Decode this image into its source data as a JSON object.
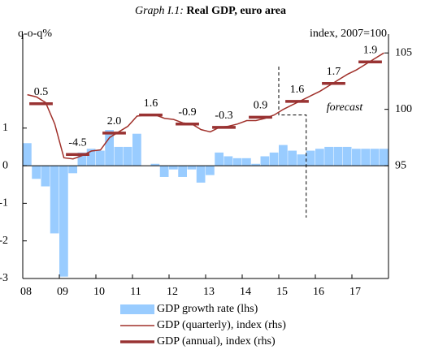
{
  "chart_data": {
    "type": "bar_line",
    "title_prefix": "Graph I.1:",
    "title": "Real GDP, euro area",
    "ylabel": "q-o-q%",
    "y2label": "index, 2007=100",
    "annotation": "forecast",
    "forecast_from": [
      2015,
      2015.75
    ],
    "x": [
      2008,
      2008.25,
      2008.5,
      2008.75,
      2009,
      2009.25,
      2009.5,
      2009.75,
      2010,
      2010.25,
      2010.5,
      2010.75,
      2011,
      2011.25,
      2011.5,
      2011.75,
      2012,
      2012.25,
      2012.5,
      2012.75,
      2013,
      2013.25,
      2013.5,
      2013.75,
      2014,
      2014.25,
      2014.5,
      2014.75,
      2015,
      2015.25,
      2015.5,
      2015.75,
      2016,
      2016.25,
      2016.5,
      2016.75,
      2017,
      2017.25,
      2017.5,
      2017.75
    ],
    "xlim": [
      2008,
      2018
    ],
    "xticks": [
      {
        "value": 2008,
        "label": "08"
      },
      {
        "value": 2009,
        "label": "09"
      },
      {
        "value": 2010,
        "label": "10"
      },
      {
        "value": 2011,
        "label": "11"
      },
      {
        "value": 2012,
        "label": "12"
      },
      {
        "value": 2013,
        "label": "13"
      },
      {
        "value": 2014,
        "label": "14"
      },
      {
        "value": 2015,
        "label": "15"
      },
      {
        "value": 2016,
        "label": "16"
      },
      {
        "value": 2017,
        "label": "17"
      }
    ],
    "ylim": [
      -3,
      3.5
    ],
    "yticks": [
      -3,
      -2,
      -1,
      0,
      1
    ],
    "y2lim": [
      85,
      106.67
    ],
    "y2ticks": [
      95,
      100,
      105
    ],
    "series": [
      {
        "name": "GDP growth rate (lhs)",
        "type": "bar",
        "color": "#99ccff",
        "values": [
          0.6,
          -0.35,
          -0.55,
          -1.8,
          -2.95,
          -0.2,
          0.35,
          0.45,
          0.4,
          0.95,
          0.5,
          0.5,
          0.85,
          0.0,
          0.05,
          -0.3,
          -0.1,
          -0.3,
          -0.1,
          -0.45,
          -0.25,
          0.35,
          0.25,
          0.2,
          0.2,
          0.05,
          0.25,
          0.35,
          0.55,
          0.4,
          0.3,
          0.4,
          0.45,
          0.5,
          0.5,
          0.5,
          0.45,
          0.45,
          0.45,
          0.45
        ]
      },
      {
        "name": "GDP (quarterly), index (rhs)",
        "type": "line",
        "axis": "y2",
        "color": "#a0302a",
        "values": [
          101.3,
          101.1,
          100.6,
          98.7,
          95.7,
          95.6,
          95.9,
          96.3,
          96.4,
          97.5,
          98.0,
          98.5,
          99.4,
          99.5,
          99.5,
          99.2,
          99.1,
          98.8,
          98.7,
          98.2,
          98.0,
          98.4,
          98.5,
          98.7,
          99.0,
          99.0,
          99.2,
          99.5,
          100.0,
          100.4,
          100.8,
          101.2,
          101.6,
          102.1,
          102.6,
          103.1,
          103.5,
          104.0,
          104.5,
          105.0
        ]
      },
      {
        "name": "GDP (annual), index (rhs)",
        "type": "step",
        "axis": "y2",
        "color": "#993333",
        "x": [
          2008,
          2009,
          2010,
          2011,
          2012,
          2013,
          2014,
          2015,
          2016,
          2017
        ],
        "values": [
          100.5,
          96.0,
          97.9,
          99.5,
          98.7,
          98.4,
          99.3,
          100.7,
          102.3,
          104.2
        ],
        "growth": [
          0.5,
          -4.5,
          2.0,
          1.6,
          -0.9,
          -0.3,
          0.9,
          1.6,
          1.7,
          1.9
        ],
        "growth_labels": [
          "0.5",
          "-4.5",
          "2.0",
          "1.6",
          "-0.9",
          "-0.3",
          "0.9",
          "1.6",
          "1.7",
          "1.9"
        ],
        "label_colors": [
          "#a0302a",
          "#2f4f7f"
        ]
      }
    ]
  }
}
